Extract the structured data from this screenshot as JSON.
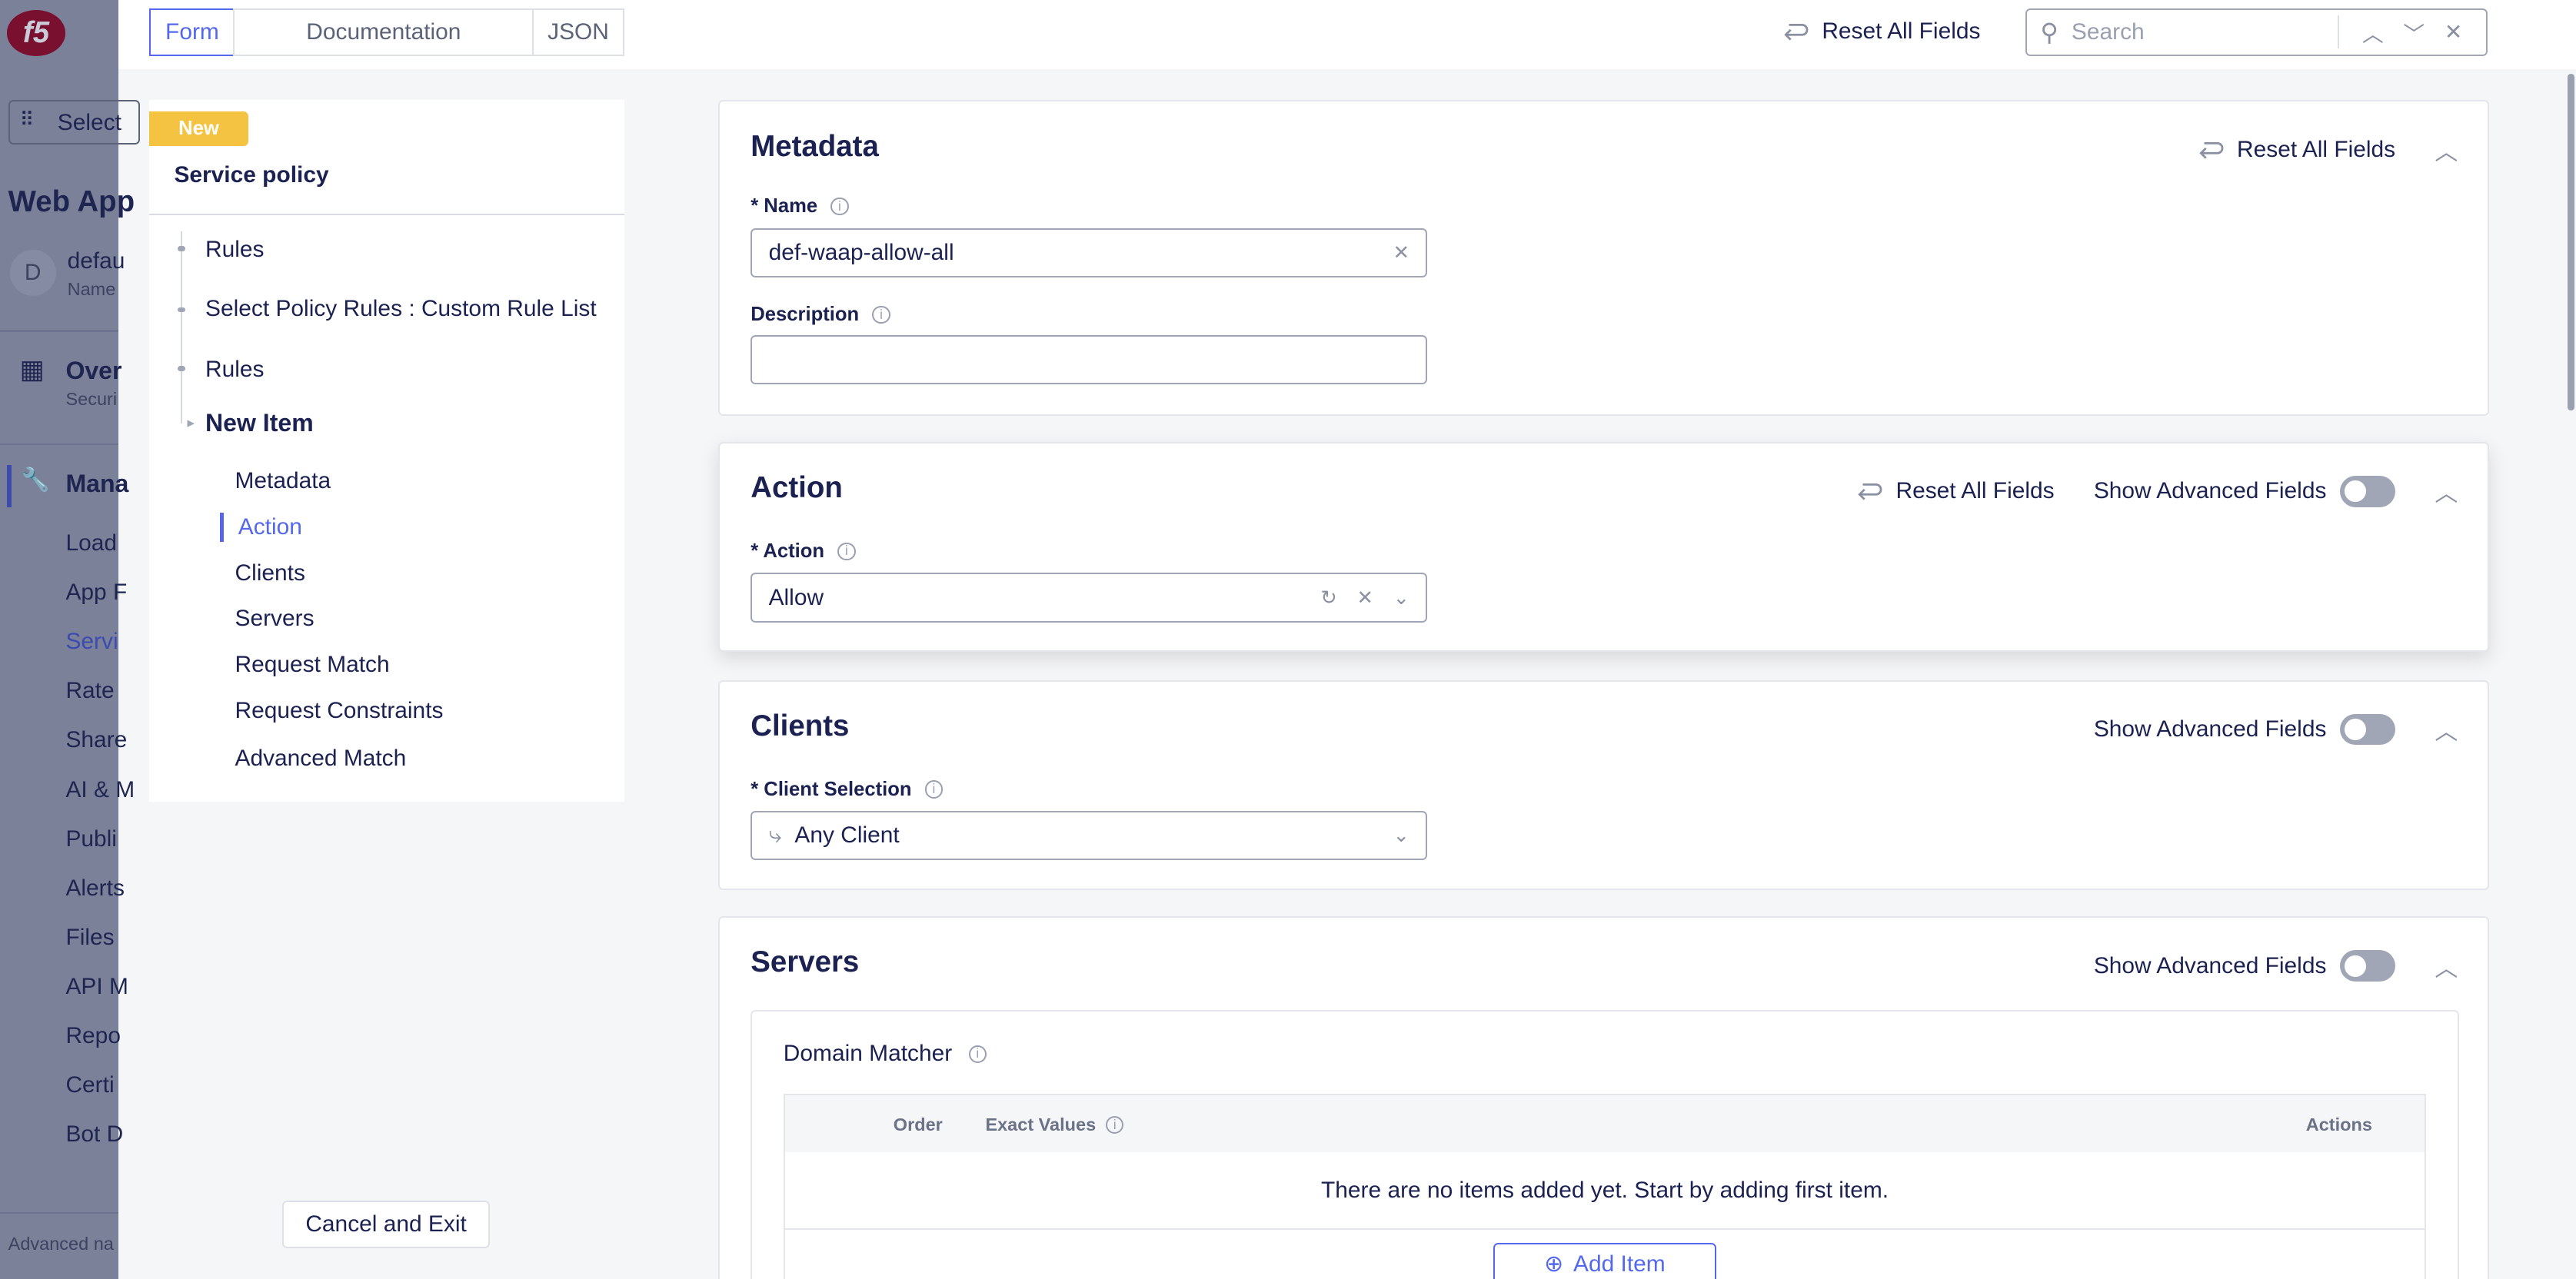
{
  "app_nav": {
    "logo": "f5",
    "select_label": "Select",
    "section_title": "Web App",
    "namespace_avatar": "D",
    "namespace_name": "defau",
    "namespace_sub": "Name",
    "overview_label": "Over",
    "overview_sub": "Securi",
    "manage_label": "Mana",
    "items": [
      "Load",
      "App F",
      "Servi",
      "Rate",
      "Share",
      "AI & M",
      "Publi",
      "Alerts",
      "Files",
      "API M",
      "Repo",
      "Certi",
      "Bot D"
    ],
    "footer": "Advanced na"
  },
  "toolbar": {
    "tabs": [
      "Form",
      "Documentation",
      "JSON"
    ],
    "active_tab": "Form",
    "reset_all": "Reset All Fields",
    "search_placeholder": "Search"
  },
  "left_nav": {
    "badge": "New",
    "title": "Service policy",
    "tree": [
      "Rules",
      "Select Policy Rules : Custom Rule List",
      "Rules"
    ],
    "current": "New Item",
    "sections": [
      "Metadata",
      "Action",
      "Clients",
      "Servers",
      "Request Match",
      "Request Constraints",
      "Advanced Match"
    ],
    "active_section": "Action",
    "cancel": "Cancel and Exit"
  },
  "metadata": {
    "title": "Metadata",
    "reset": "Reset All Fields",
    "name_label": "* Name",
    "name_value": "def-waap-allow-all",
    "description_label": "Description",
    "description_value": ""
  },
  "action": {
    "title": "Action",
    "reset": "Reset All Fields",
    "advanced": "Show Advanced Fields",
    "advanced_on": false,
    "field_label": "* Action",
    "value": "Allow"
  },
  "clients": {
    "title": "Clients",
    "advanced": "Show Advanced Fields",
    "advanced_on": false,
    "field_label": "* Client Selection",
    "value": "Any Client"
  },
  "servers": {
    "title": "Servers",
    "advanced": "Show Advanced Fields",
    "advanced_on": false,
    "domain_matcher": "Domain Matcher",
    "columns": [
      "Order",
      "Exact Values",
      "Actions"
    ],
    "empty": "There are no items added yet. Start by adding first item.",
    "add_item": "Add Item"
  },
  "colors": {
    "accent": "#5468ee",
    "badge": "#f5c342",
    "text": "#1b2150",
    "brand": "#e4002b"
  }
}
